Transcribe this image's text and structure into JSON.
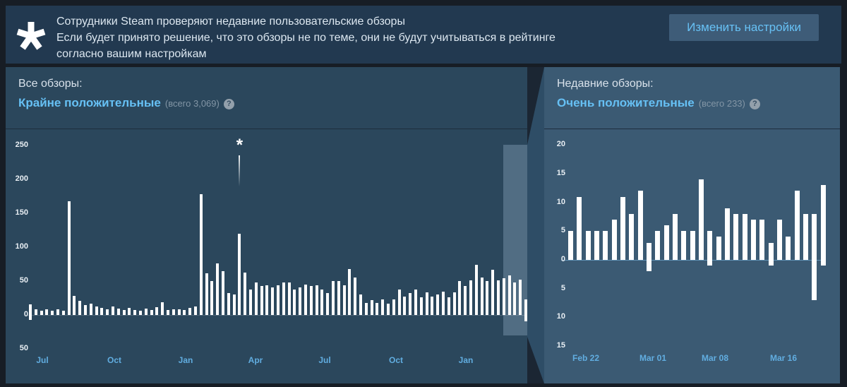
{
  "banner": {
    "icon": "asterisk",
    "lines": [
      "Сотрудники Steam проверяют недавние пользовательские обзоры",
      "Если будет принято решение, что это обзоры не по теме, они не будут учитываться в рейтинге",
      "согласно вашим настройкам"
    ],
    "button_label": "Изменить настройки"
  },
  "overall_panel": {
    "heading": "Все обзоры:",
    "rating": "Крайне положительные",
    "total": "(всего 3,069)",
    "help_icon": "?"
  },
  "recent_panel": {
    "heading": "Недавние обзоры:",
    "rating": "Очень положительные",
    "total": "(всего 233)",
    "help_icon": "?"
  },
  "colors": {
    "page_background": "#171d25",
    "banner_background": "#223950",
    "overall_panel_background": "#2b475c",
    "recent_panel_background": "#3b5a73",
    "accent_blue": "#66c0f4",
    "axis_label_blue": "#61ade0",
    "bar_color": "#ffffff",
    "recent_window_highlight": "rgba(170,200,222,0.30)"
  },
  "chart_data": [
    {
      "id": "overall",
      "type": "bar",
      "title": "Все обзоры: Крайне положительные",
      "total_label": "(всего 3,069)",
      "granularity": "weekly",
      "ylim": [
        -50,
        270
      ],
      "y_tick_labels": [
        "250",
        "200",
        "150",
        "100",
        "50",
        "0",
        "50"
      ],
      "y_tick_values": [
        250,
        200,
        150,
        100,
        50,
        0,
        -50
      ],
      "x_tick_labels": [
        "Jul",
        "Oct",
        "Jan",
        "Apr",
        "Jul",
        "Oct",
        "Jan"
      ],
      "positive": [
        16,
        8,
        6,
        8,
        6,
        8,
        6,
        168,
        28,
        21,
        15,
        17,
        13,
        10,
        8,
        13,
        9,
        7,
        10,
        7,
        6,
        9,
        7,
        12,
        19,
        7,
        8,
        8,
        7,
        10,
        13,
        178,
        62,
        50,
        76,
        65,
        32,
        30,
        120,
        63,
        38,
        48,
        43,
        44,
        41,
        44,
        48,
        48,
        38,
        41,
        45,
        43,
        44,
        38,
        32,
        50,
        50,
        44,
        68,
        55,
        30,
        18,
        22,
        18,
        23,
        17,
        23,
        38,
        27,
        32,
        38,
        26,
        33,
        27,
        30,
        34,
        26,
        33,
        50,
        43,
        51,
        74,
        55,
        50,
        67,
        51,
        54,
        58,
        48,
        52,
        23
      ],
      "negative": [
        7,
        0,
        0,
        0,
        0,
        0,
        0,
        0,
        0,
        0,
        0,
        0,
        0,
        0,
        0,
        0,
        0,
        0,
        0,
        0,
        0,
        0,
        0,
        0,
        0,
        0,
        0,
        0,
        0,
        0,
        0,
        0,
        0,
        0,
        0,
        0,
        0,
        0,
        0,
        0,
        0,
        0,
        0,
        0,
        0,
        0,
        0,
        0,
        0,
        0,
        0,
        0,
        0,
        0,
        0,
        0,
        0,
        0,
        0,
        0,
        0,
        0,
        0,
        0,
        0,
        0,
        0,
        0,
        0,
        0,
        0,
        0,
        0,
        0,
        0,
        0,
        0,
        0,
        0,
        0,
        0,
        0,
        0,
        0,
        0,
        0,
        0,
        0,
        0,
        0,
        9
      ],
      "annotation": {
        "symbol": "*",
        "bar_index": 38
      },
      "highlighted_recent_window": true
    },
    {
      "id": "recent",
      "type": "bar",
      "title": "Недавние обзоры: Очень положительные",
      "total_label": "(всего 233)",
      "granularity": "daily",
      "ylim": [
        -15,
        20
      ],
      "y_tick_labels": [
        "20",
        "15",
        "10",
        "5",
        "0",
        "5",
        "10",
        "15"
      ],
      "y_tick_values": [
        20,
        15,
        10,
        5,
        0,
        -5,
        -10,
        -15
      ],
      "x_tick_labels": [
        "Feb 22",
        "Mar 01",
        "Mar 08",
        "Mar 16"
      ],
      "positive": [
        5,
        11,
        5,
        5,
        5,
        7,
        11,
        8,
        12,
        3,
        5,
        6,
        8,
        5,
        5,
        14,
        5,
        4,
        9,
        8,
        8,
        7,
        7,
        3,
        7,
        4,
        12,
        8,
        8,
        13
      ],
      "negative": [
        0,
        0,
        0,
        0,
        0,
        0,
        0,
        0,
        0,
        2,
        0,
        0,
        0,
        0,
        0,
        0,
        1,
        0,
        0,
        0,
        0,
        0,
        0,
        1,
        0,
        0,
        0,
        0,
        7,
        1
      ],
      "annotation": null,
      "highlighted_recent_window": false
    }
  ]
}
